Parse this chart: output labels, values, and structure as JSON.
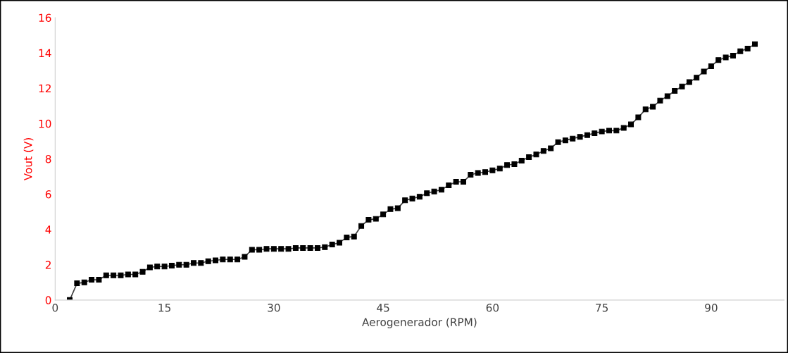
{
  "chart_data": {
    "type": "line",
    "xlabel": "Aerogenerador (RPM)",
    "ylabel": "Vout (V)",
    "x": [
      2,
      3,
      4,
      5,
      6,
      7,
      8,
      9,
      10,
      11,
      12,
      13,
      14,
      15,
      16,
      17,
      18,
      19,
      20,
      21,
      22,
      23,
      24,
      25,
      26,
      27,
      28,
      29,
      30,
      31,
      32,
      33,
      34,
      35,
      36,
      37,
      38,
      39,
      40,
      41,
      42,
      43,
      44,
      45,
      46,
      47,
      48,
      49,
      50,
      51,
      52,
      53,
      54,
      55,
      56,
      57,
      58,
      59,
      60,
      61,
      62,
      63,
      64,
      65,
      66,
      67,
      68,
      69,
      70,
      71,
      72,
      73,
      74,
      75,
      76,
      77,
      78,
      79,
      80,
      81,
      82,
      83,
      84,
      85,
      86,
      87,
      88,
      89,
      90,
      91,
      92,
      93,
      94,
      95,
      96
    ],
    "series": [
      {
        "color": "#000000",
        "values": [
          0,
          0.95,
          1.0,
          1.15,
          1.15,
          1.4,
          1.4,
          1.4,
          1.45,
          1.45,
          1.6,
          1.85,
          1.9,
          1.9,
          1.95,
          2.0,
          2.0,
          2.1,
          2.1,
          2.2,
          2.25,
          2.3,
          2.3,
          2.3,
          2.45,
          2.85,
          2.85,
          2.9,
          2.9,
          2.9,
          2.9,
          2.95,
          2.95,
          2.95,
          2.95,
          3.0,
          3.15,
          3.25,
          3.55,
          3.6,
          4.2,
          4.55,
          4.6,
          4.85,
          5.15,
          5.2,
          5.65,
          5.75,
          5.85,
          6.05,
          6.15,
          6.25,
          6.5,
          6.7,
          6.7,
          7.1,
          7.2,
          7.25,
          7.35,
          7.45,
          7.65,
          7.7,
          7.9,
          8.1,
          8.25,
          8.45,
          8.6,
          8.95,
          9.05,
          9.15,
          9.25,
          9.35,
          9.45,
          9.55,
          9.6,
          9.6,
          9.75,
          9.95,
          10.35,
          10.8,
          10.95,
          11.3,
          11.55,
          11.85,
          12.1,
          12.35,
          12.6,
          12.95,
          13.25,
          13.6,
          13.75,
          13.85,
          14.1,
          14.25,
          14.5
        ]
      }
    ],
    "xlim": [
      0,
      100
    ],
    "xticks": [
      0,
      15,
      30,
      45,
      60,
      75,
      90
    ],
    "ylim": [
      0,
      16
    ],
    "yticks": [
      0,
      2,
      4,
      6,
      8,
      10,
      12,
      14,
      16
    ],
    "marker": "square",
    "line_style": "solid",
    "grid": false,
    "legend": false
  }
}
